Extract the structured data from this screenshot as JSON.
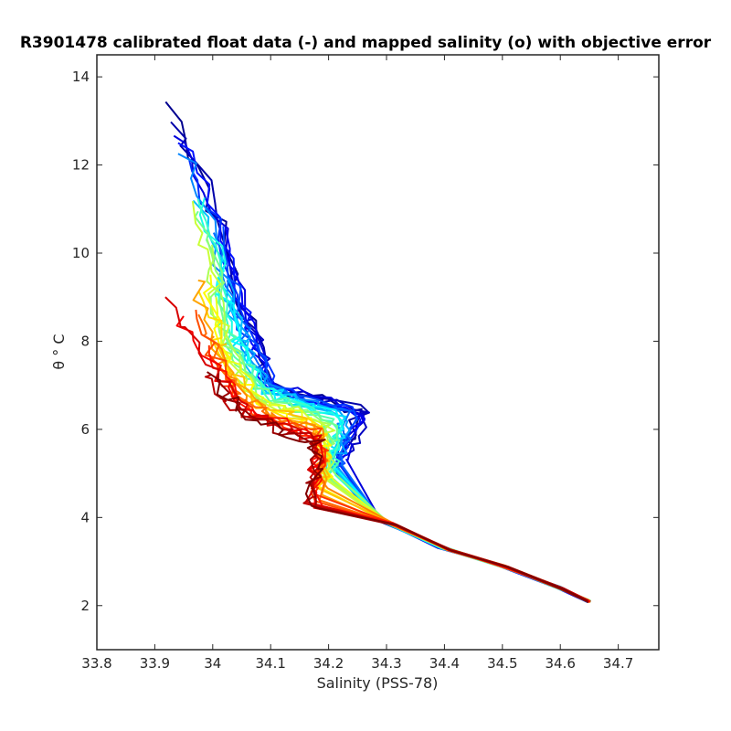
{
  "chart_data": {
    "type": "line",
    "title": "R3901478 calibrated float data (-) and mapped salinity (o) with objective error",
    "xlabel": "Salinity (PSS-78)",
    "ylabel": "θ ° C",
    "xlim": [
      33.8,
      34.77
    ],
    "ylim": [
      1.0,
      14.5
    ],
    "x_ticks": [
      "33.8",
      "33.9",
      "34",
      "34.1",
      "34.2",
      "34.3",
      "34.4",
      "34.5",
      "34.6",
      "34.7"
    ],
    "y_ticks": [
      "2",
      "4",
      "6",
      "8",
      "10",
      "12",
      "14"
    ],
    "grid": false,
    "legend": "none",
    "colormap": "jet",
    "colormap_stops": [
      "#00008f",
      "#0000ff",
      "#0080ff",
      "#00ffff",
      "#80ff80",
      "#ffff00",
      "#ff8000",
      "#ff0000",
      "#800000"
    ],
    "series_count": 36,
    "deep_branch": [
      {
        "salinity": 34.3,
        "theta": 3.9
      },
      {
        "salinity": 34.4,
        "theta": 3.3
      },
      {
        "salinity": 34.5,
        "theta": 2.9
      },
      {
        "salinity": 34.6,
        "theta": 2.4
      },
      {
        "salinity": 34.65,
        "theta": 2.1
      }
    ],
    "profile_groups": [
      {
        "name": "early",
        "color_fraction": 0.1,
        "upper_water": [
          {
            "salinity": 33.92,
            "theta": 13.4
          },
          {
            "salinity": 33.99,
            "theta": 11.5
          },
          {
            "salinity": 34.05,
            "theta": 9.0
          },
          {
            "salinity": 34.1,
            "theta": 7.0
          },
          {
            "salinity": 34.26,
            "theta": 6.4
          },
          {
            "salinity": 34.22,
            "theta": 5.2
          }
        ]
      },
      {
        "name": "mid",
        "color_fraction": 0.5,
        "upper_water": [
          {
            "salinity": 33.96,
            "theta": 11.5
          },
          {
            "salinity": 34.0,
            "theta": 10.0
          },
          {
            "salinity": 34.02,
            "theta": 8.0
          },
          {
            "salinity": 34.08,
            "theta": 6.8
          },
          {
            "salinity": 34.2,
            "theta": 6.2
          },
          {
            "salinity": 34.2,
            "theta": 5.0
          }
        ]
      },
      {
        "name": "late",
        "color_fraction": 0.95,
        "upper_water": [
          {
            "salinity": 33.9,
            "theta": 9.0
          },
          {
            "salinity": 33.98,
            "theta": 7.5
          },
          {
            "salinity": 34.05,
            "theta": 6.3
          },
          {
            "salinity": 34.18,
            "theta": 5.7
          },
          {
            "salinity": 34.17,
            "theta": 4.2
          }
        ]
      }
    ]
  }
}
